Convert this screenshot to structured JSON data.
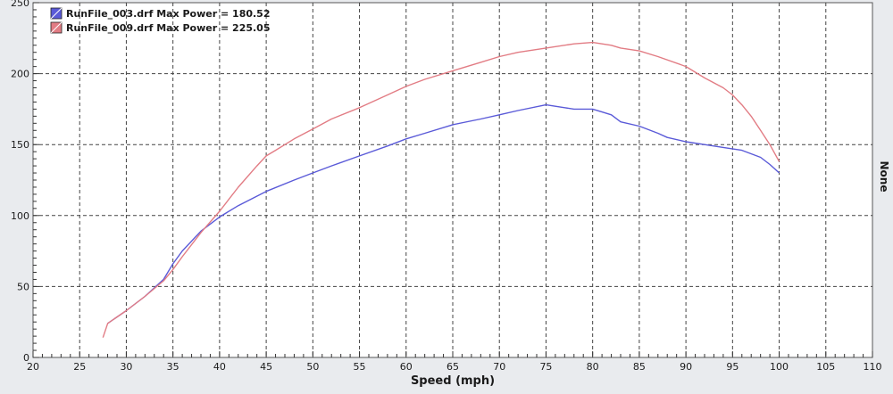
{
  "chart_data": {
    "type": "line",
    "title": "",
    "xlabel": "Speed (mph)",
    "ylabel": "",
    "right_label": "None",
    "xlim": [
      20,
      110
    ],
    "ylim": [
      0,
      250
    ],
    "x_ticks": [
      20,
      25,
      30,
      35,
      40,
      45,
      50,
      55,
      60,
      65,
      70,
      75,
      80,
      85,
      90,
      95,
      100,
      105,
      110
    ],
    "y_ticks": [
      0,
      50,
      100,
      150,
      200,
      250
    ],
    "grid": true,
    "legend_position": "top-left",
    "series": [
      {
        "name": "RunFile_003.drf Max Power = 180.52",
        "color": "#5a5ad8",
        "x": [
          28,
          30,
          32,
          34,
          35,
          36,
          38,
          40,
          42,
          45,
          48,
          50,
          52,
          55,
          58,
          60,
          62,
          65,
          68,
          70,
          72,
          75,
          77,
          78,
          80,
          81,
          82,
          83,
          85,
          87,
          88,
          90,
          92,
          94,
          96,
          98,
          99,
          100
        ],
        "y": [
          24,
          33,
          43,
          55,
          66,
          75,
          89,
          99,
          107,
          117,
          125,
          130,
          135,
          142,
          149,
          154,
          158,
          164,
          168,
          171,
          174,
          178,
          176,
          175,
          175,
          173,
          171,
          166,
          163,
          158,
          155,
          152,
          150,
          148,
          146,
          141,
          136,
          130
        ]
      },
      {
        "name": "RunFile_009.drf Max Power = 225.05",
        "color": "#e27c84",
        "x": [
          27.5,
          28,
          30,
          32,
          34,
          35,
          36,
          38,
          40,
          42,
          44,
          45,
          46,
          48,
          50,
          52,
          55,
          58,
          60,
          62,
          65,
          68,
          70,
          72,
          75,
          78,
          80,
          82,
          83,
          85,
          87,
          90,
          92,
          94,
          95,
          96,
          97,
          98,
          99,
          100
        ],
        "y": [
          14,
          24,
          33,
          43,
          54,
          62,
          71,
          88,
          103,
          120,
          135,
          142,
          146,
          154,
          161,
          168,
          176,
          185,
          191,
          196,
          202,
          208,
          212,
          215,
          218,
          221,
          222,
          220,
          218,
          216,
          212,
          205,
          197,
          190,
          185,
          178,
          170,
          160,
          150,
          138
        ]
      }
    ]
  }
}
